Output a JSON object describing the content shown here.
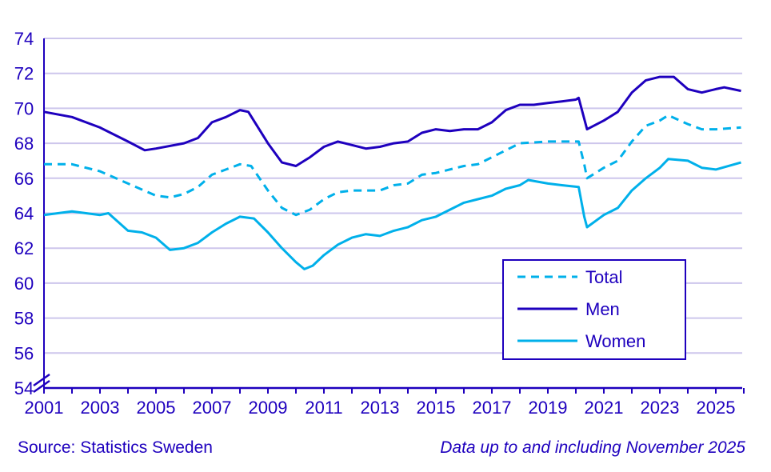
{
  "chart_data": {
    "type": "line",
    "xlim": [
      2001,
      2026
    ],
    "ylim": [
      54,
      74
    ],
    "y_ticks": [
      54,
      56,
      58,
      60,
      62,
      64,
      66,
      68,
      70,
      72,
      74
    ],
    "x_tick_labels": [
      "2001",
      "2003",
      "2005",
      "2007",
      "2009",
      "2011",
      "2013",
      "2015",
      "2017",
      "2019",
      "2021",
      "2023",
      "2025"
    ],
    "grid": true,
    "y_axis_break": true,
    "legend_position": "bottom-right",
    "series": [
      {
        "name": "Total",
        "style": "dashed",
        "color": "#00b0ea",
        "x": [
          2001,
          2002,
          2003,
          2004,
          2005,
          2005.5,
          2006,
          2006.5,
          2007,
          2007.5,
          2008,
          2008.4,
          2009,
          2009.5,
          2010,
          2010.5,
          2011,
          2011.5,
          2012,
          2013,
          2013.5,
          2014,
          2014.5,
          2015,
          2016,
          2016.5,
          2017,
          2017.5,
          2018,
          2019,
          2020.1,
          2020.3,
          2020.4,
          2021,
          2021.5,
          2022,
          2022.5,
          2023,
          2023.3,
          2024,
          2024.5,
          2025,
          2025.9
        ],
        "y": [
          66.8,
          66.8,
          66.4,
          65.7,
          65.0,
          64.9,
          65.1,
          65.5,
          66.2,
          66.5,
          66.8,
          66.7,
          65.3,
          64.3,
          63.9,
          64.2,
          64.8,
          65.2,
          65.3,
          65.3,
          65.6,
          65.7,
          66.2,
          66.3,
          66.7,
          66.8,
          67.2,
          67.6,
          68.0,
          68.1,
          68.1,
          66.8,
          66.0,
          66.6,
          67.0,
          68.1,
          69.0,
          69.3,
          69.6,
          69.1,
          68.8,
          68.8,
          68.9
        ]
      },
      {
        "name": "Men",
        "style": "solid",
        "color": "#1e00be",
        "x": [
          2001,
          2002,
          2003,
          2004,
          2004.6,
          2005,
          2006,
          2006.5,
          2007,
          2007.5,
          2008,
          2008.3,
          2009,
          2009.5,
          2010,
          2010.5,
          2011,
          2011.5,
          2012,
          2012.5,
          2013,
          2013.5,
          2014,
          2014.5,
          2015,
          2015.5,
          2016,
          2016.5,
          2017,
          2017.5,
          2018,
          2018.5,
          2019,
          2019.5,
          2020,
          2020.1,
          2020.3,
          2020.4,
          2021,
          2021.5,
          2022,
          2022.5,
          2023,
          2023.5,
          2024,
          2024.5,
          2025,
          2025.3,
          2025.9
        ],
        "y": [
          69.8,
          69.5,
          68.9,
          68.1,
          67.6,
          67.7,
          68.0,
          68.3,
          69.2,
          69.5,
          69.9,
          69.8,
          68.0,
          66.9,
          66.7,
          67.2,
          67.8,
          68.1,
          67.9,
          67.7,
          67.8,
          68.0,
          68.1,
          68.6,
          68.8,
          68.7,
          68.8,
          68.8,
          69.2,
          69.9,
          70.2,
          70.2,
          70.3,
          70.4,
          70.5,
          70.6,
          69.4,
          68.8,
          69.3,
          69.8,
          70.9,
          71.6,
          71.8,
          71.8,
          71.1,
          70.9,
          71.1,
          71.2,
          71.0
        ]
      },
      {
        "name": "Women",
        "style": "solid",
        "color": "#00b0ea",
        "x": [
          2001,
          2002,
          2003,
          2003.3,
          2004,
          2004.5,
          2005,
          2005.5,
          2006,
          2006.5,
          2007,
          2007.5,
          2008,
          2008.5,
          2009,
          2009.5,
          2010,
          2010.3,
          2010.6,
          2011,
          2011.5,
          2012,
          2012.5,
          2013,
          2013.5,
          2014,
          2014.5,
          2015,
          2015.5,
          2016,
          2016.5,
          2017,
          2017.5,
          2018,
          2018.3,
          2019,
          2019.5,
          2020.1,
          2020.3,
          2020.4,
          2021,
          2021.5,
          2022,
          2022.5,
          2023,
          2023.3,
          2024,
          2024.5,
          2025,
          2025.9
        ],
        "y": [
          63.9,
          64.1,
          63.9,
          64.0,
          63.0,
          62.9,
          62.6,
          61.9,
          62.0,
          62.3,
          62.9,
          63.4,
          63.8,
          63.7,
          62.9,
          62.0,
          61.2,
          60.8,
          61.0,
          61.6,
          62.2,
          62.6,
          62.8,
          62.7,
          63.0,
          63.2,
          63.6,
          63.8,
          64.2,
          64.6,
          64.8,
          65.0,
          65.4,
          65.6,
          65.9,
          65.7,
          65.6,
          65.5,
          63.8,
          63.2,
          63.9,
          64.3,
          65.3,
          66.0,
          66.6,
          67.1,
          67.0,
          66.6,
          66.5,
          66.9
        ]
      }
    ]
  },
  "footer": {
    "source": "Source: Statistics Sweden",
    "note": "Data up to and including November 2025"
  }
}
